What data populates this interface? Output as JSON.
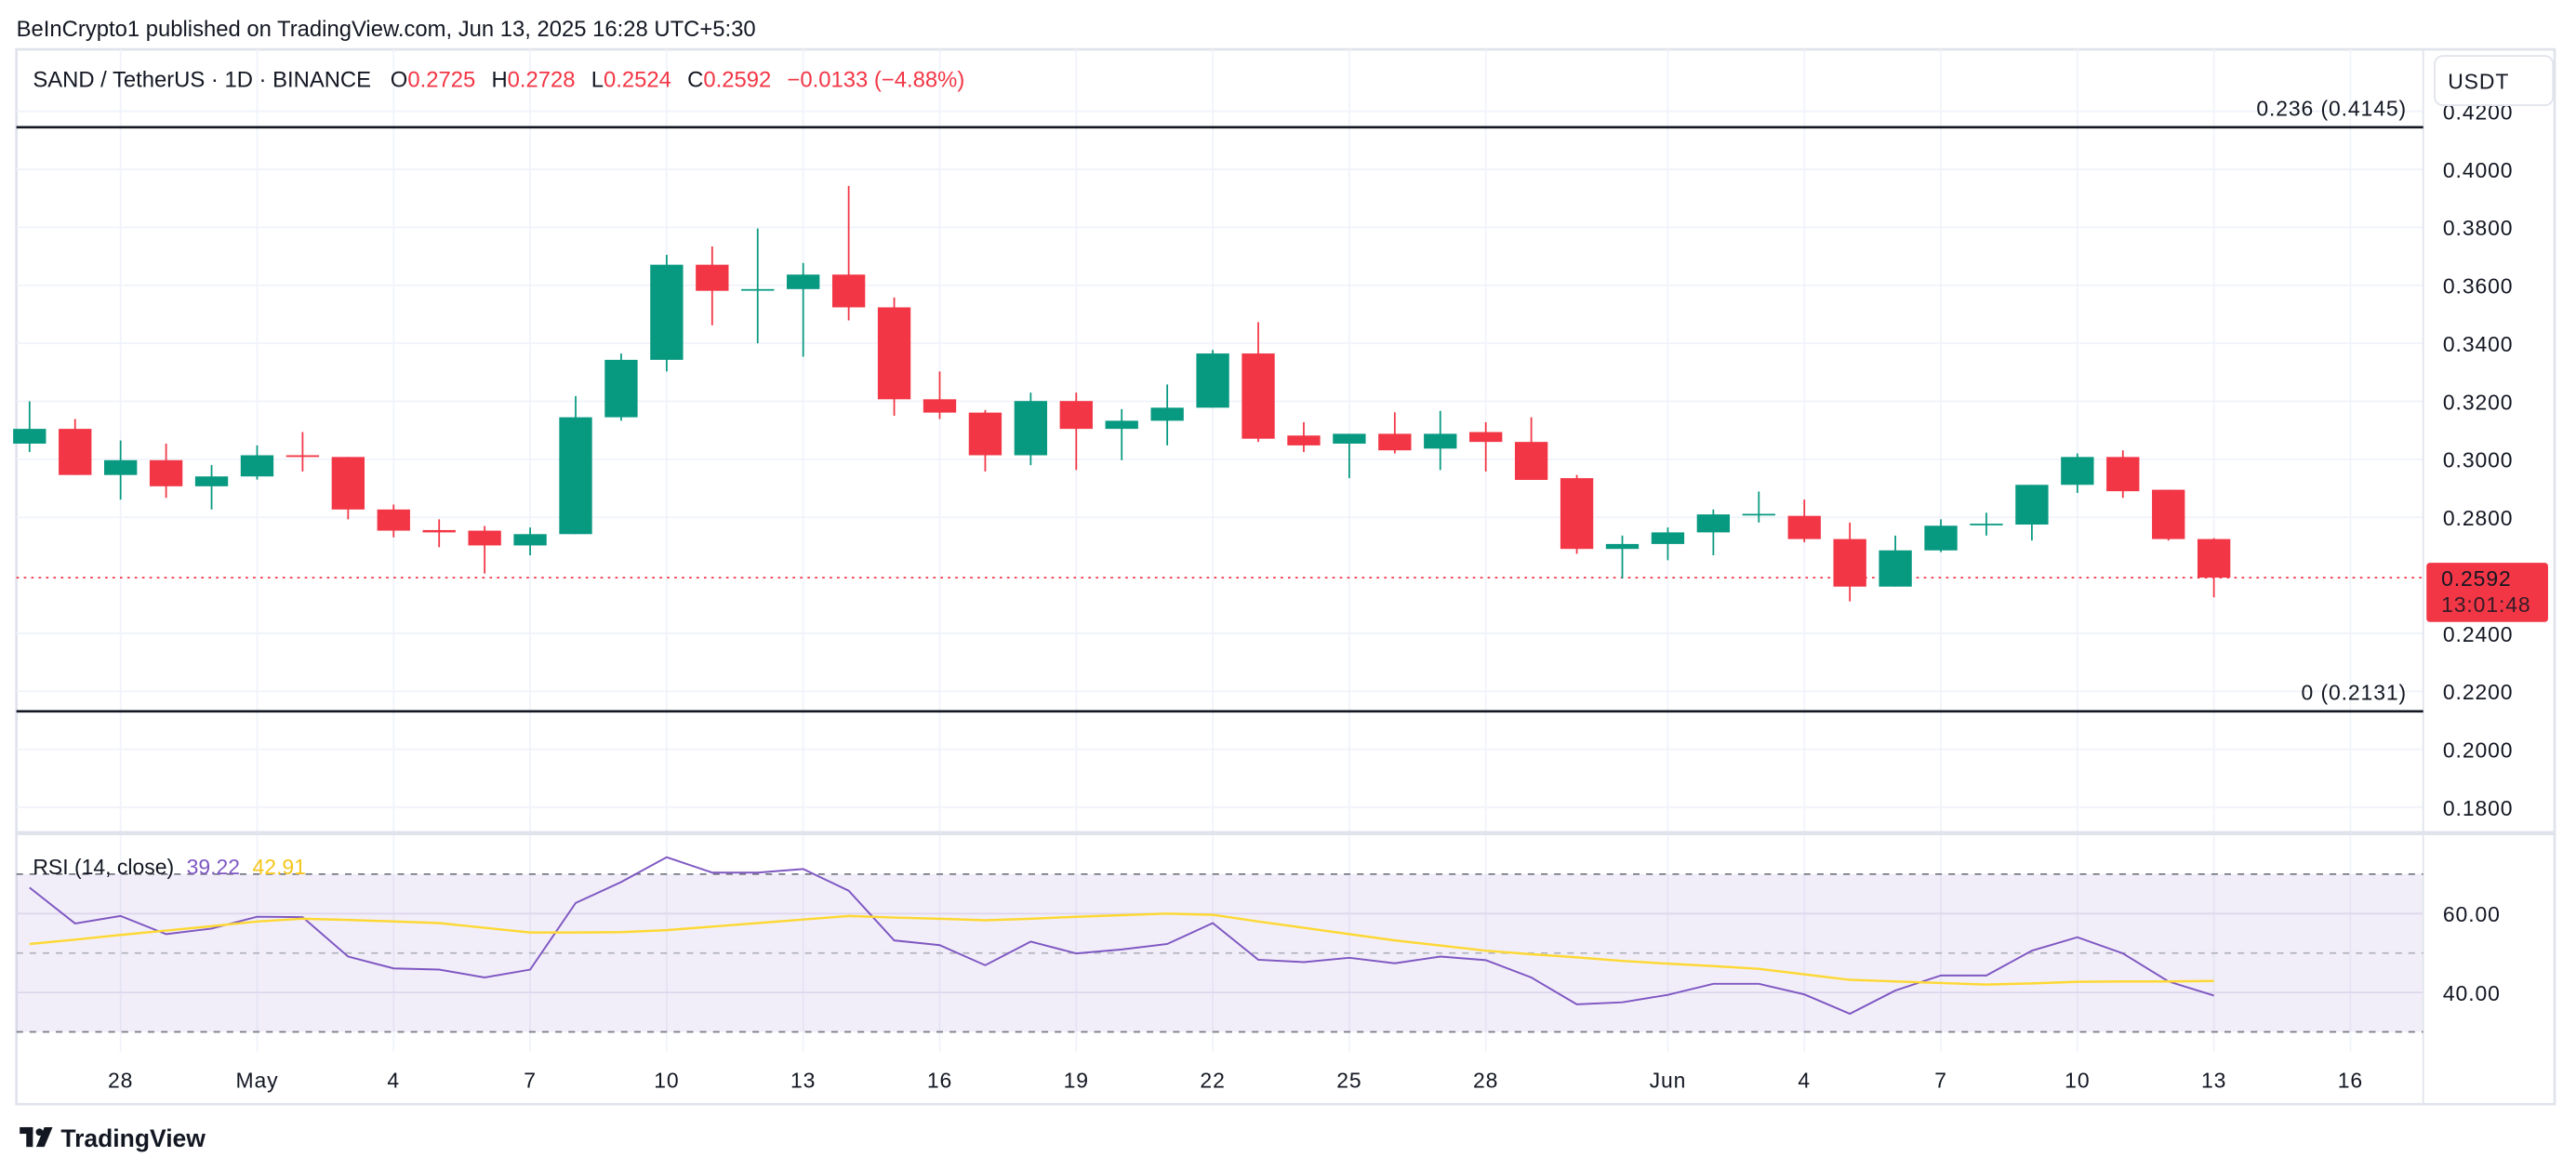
{
  "publisher_line": "BeInCrypto1 published on TradingView.com, Jun 13, 2025 16:28 UTC+5:30",
  "legend": {
    "symbol": "SAND / TetherUS · 1D · BINANCE",
    "o_label": "O",
    "o": "0.2725",
    "h_label": "H",
    "h": "0.2728",
    "l_label": "L",
    "l": "0.2524",
    "c_label": "C",
    "c": "0.2592",
    "change": "−0.0133 (−4.88%)"
  },
  "currency_button": "USDT",
  "fib_levels": [
    {
      "label": "0.236 (0.4145)",
      "price": 0.4145
    },
    {
      "label": "0 (0.2131)",
      "price": 0.2131
    }
  ],
  "last_price": {
    "value": "0.2592",
    "countdown": "13:01:48",
    "price": 0.2592
  },
  "rsi_legend": {
    "label": "RSI (14, close)",
    "rsi": "39.22",
    "ma": "42.91"
  },
  "logo_text": "TradingView",
  "colors": {
    "up": "#089981",
    "down": "#f23645",
    "rsi": "#7e57c2",
    "rsi_ma": "#fdd835",
    "fib": "#131722"
  },
  "chart_data": [
    {
      "type": "candlestick",
      "title": "SAND / TetherUS · 1D · BINANCE",
      "ylim": [
        0.17,
        0.42
      ],
      "y_ticks": [
        "0.4200",
        "0.4000",
        "0.3800",
        "0.3600",
        "0.3400",
        "0.3200",
        "0.3000",
        "0.2800",
        "0.2400",
        "0.2200",
        "0.2000",
        "0.1800"
      ],
      "grid": true,
      "x_ticks": [
        {
          "label": "28",
          "date": "2025-04-28"
        },
        {
          "label": "May",
          "date": "2025-05-01"
        },
        {
          "label": "4",
          "date": "2025-05-04"
        },
        {
          "label": "7",
          "date": "2025-05-07"
        },
        {
          "label": "10",
          "date": "2025-05-10"
        },
        {
          "label": "13",
          "date": "2025-05-13"
        },
        {
          "label": "16",
          "date": "2025-05-16"
        },
        {
          "label": "19",
          "date": "2025-05-19"
        },
        {
          "label": "22",
          "date": "2025-05-22"
        },
        {
          "label": "25",
          "date": "2025-05-25"
        },
        {
          "label": "28",
          "date": "2025-05-28"
        },
        {
          "label": "Jun",
          "date": "2025-06-01"
        },
        {
          "label": "4",
          "date": "2025-06-04"
        },
        {
          "label": "7",
          "date": "2025-06-07"
        },
        {
          "label": "10",
          "date": "2025-06-10"
        },
        {
          "label": "13",
          "date": "2025-06-13"
        },
        {
          "label": "16",
          "date": "2025-06-16"
        }
      ],
      "candles": [
        [
          "2025-04-26",
          0.3054,
          0.32,
          0.3025,
          0.3105
        ],
        [
          "2025-04-27",
          0.3105,
          0.3139,
          0.2946,
          0.2946
        ],
        [
          "2025-04-28",
          0.2946,
          0.3065,
          0.2861,
          0.2997
        ],
        [
          "2025-04-29",
          0.2997,
          0.3054,
          0.2867,
          0.2907
        ],
        [
          "2025-04-30",
          0.2907,
          0.298,
          0.2827,
          0.2941
        ],
        [
          "2025-05-01",
          0.2941,
          0.3048,
          0.293,
          0.3014
        ],
        [
          "2025-05-02",
          0.3014,
          0.3094,
          0.2958,
          0.3008
        ],
        [
          "2025-05-03",
          0.3008,
          0.3008,
          0.2793,
          0.2827
        ],
        [
          "2025-05-04",
          0.2827,
          0.2844,
          0.2731,
          0.2754
        ],
        [
          "2025-05-05",
          0.2756,
          0.2793,
          0.2697,
          0.2748
        ],
        [
          "2025-05-06",
          0.2754,
          0.277,
          0.2606,
          0.2703
        ],
        [
          "2025-05-07",
          0.2703,
          0.2765,
          0.2669,
          0.2742
        ],
        [
          "2025-05-08",
          0.2742,
          0.3218,
          0.2742,
          0.3145
        ],
        [
          "2025-05-09",
          0.3145,
          0.3365,
          0.3133,
          0.3343
        ],
        [
          "2025-05-10",
          0.3343,
          0.3705,
          0.3303,
          0.3671
        ],
        [
          "2025-05-11",
          0.3671,
          0.3734,
          0.3462,
          0.3581
        ],
        [
          "2025-05-12",
          0.3585,
          0.3796,
          0.34,
          0.3587
        ],
        [
          "2025-05-13",
          0.3587,
          0.3677,
          0.3354,
          0.3637
        ],
        [
          "2025-05-14",
          0.3637,
          0.3943,
          0.3479,
          0.3524
        ],
        [
          "2025-05-15",
          0.3524,
          0.3558,
          0.315,
          0.3207
        ],
        [
          "2025-05-16",
          0.3207,
          0.3303,
          0.3139,
          0.3161
        ],
        [
          "2025-05-17",
          0.3161,
          0.317,
          0.2958,
          0.3014
        ],
        [
          "2025-05-18",
          0.3014,
          0.323,
          0.298,
          0.3201
        ],
        [
          "2025-05-19",
          0.3201,
          0.323,
          0.2963,
          0.3105
        ],
        [
          "2025-05-20",
          0.3105,
          0.3173,
          0.2997,
          0.3133
        ],
        [
          "2025-05-21",
          0.3133,
          0.3258,
          0.3048,
          0.3178
        ],
        [
          "2025-05-22",
          0.3178,
          0.3377,
          0.3178,
          0.3365
        ],
        [
          "2025-05-23",
          0.3365,
          0.3473,
          0.306,
          0.3071
        ],
        [
          "2025-05-24",
          0.3082,
          0.3128,
          0.3025,
          0.3048
        ],
        [
          "2025-05-25",
          0.3054,
          0.3088,
          0.2935,
          0.3088
        ],
        [
          "2025-05-26",
          0.3088,
          0.3162,
          0.302,
          0.3031
        ],
        [
          "2025-05-27",
          0.3037,
          0.3167,
          0.2963,
          0.3088
        ],
        [
          "2025-05-28",
          0.3094,
          0.3128,
          0.2958,
          0.306
        ],
        [
          "2025-05-29",
          0.306,
          0.3145,
          0.2929,
          0.2929
        ],
        [
          "2025-05-30",
          0.2935,
          0.2946,
          0.2674,
          0.2691
        ],
        [
          "2025-05-31",
          0.2691,
          0.2737,
          0.2589,
          0.2708
        ],
        [
          "2025-06-01",
          0.2708,
          0.2765,
          0.2652,
          0.2748
        ],
        [
          "2025-06-02",
          0.2748,
          0.2827,
          0.2669,
          0.281
        ],
        [
          "2025-06-03",
          0.281,
          0.2889,
          0.2782,
          0.2812
        ],
        [
          "2025-06-04",
          0.2805,
          0.2861,
          0.2714,
          0.2725
        ],
        [
          "2025-06-05",
          0.2725,
          0.2782,
          0.251,
          0.2561
        ],
        [
          "2025-06-06",
          0.2561,
          0.2737,
          0.2561,
          0.2686
        ],
        [
          "2025-06-07",
          0.2686,
          0.2793,
          0.268,
          0.2771
        ],
        [
          "2025-06-08",
          0.2775,
          0.2816,
          0.2737,
          0.2778
        ],
        [
          "2025-06-09",
          0.2775,
          0.2912,
          0.272,
          0.2912
        ],
        [
          "2025-06-10",
          0.2912,
          0.302,
          0.2884,
          0.3008
        ],
        [
          "2025-06-11",
          0.3008,
          0.3031,
          0.2867,
          0.289
        ],
        [
          "2025-06-12",
          0.2895,
          0.2895,
          0.272,
          0.2725
        ],
        [
          "2025-06-13",
          0.2725,
          0.2728,
          0.2524,
          0.2592
        ]
      ]
    },
    {
      "type": "line",
      "title": "RSI (14, close)",
      "ylim": [
        25,
        78
      ],
      "y_ticks": [
        "60.00",
        "40.00"
      ],
      "bands": [
        70,
        50,
        30
      ],
      "series": [
        {
          "name": "RSI",
          "color": "#7e57c2",
          "values": [
            66.6,
            57.5,
            59.4,
            54.8,
            56.2,
            59.2,
            59.1,
            49.1,
            46.1,
            45.8,
            43.8,
            45.8,
            62.7,
            68.0,
            74.3,
            70.4,
            70.4,
            71.3,
            65.8,
            53.2,
            52.0,
            46.9,
            52.9,
            49.9,
            50.9,
            52.3,
            57.6,
            48.3,
            47.7,
            48.8,
            47.4,
            49.1,
            48.2,
            43.8,
            37.0,
            37.5,
            39.4,
            42.2,
            42.2,
            39.5,
            34.6,
            40.5,
            44.3,
            44.3,
            50.6,
            54.0,
            49.9,
            42.8,
            39.22
          ]
        },
        {
          "name": "RSI-based MA",
          "color": "#fdd835",
          "values": [
            52.3,
            53.4,
            54.6,
            55.7,
            56.8,
            58.0,
            58.7,
            58.4,
            58.0,
            57.6,
            56.4,
            55.2,
            55.2,
            55.3,
            55.8,
            56.7,
            57.6,
            58.5,
            59.4,
            59.0,
            58.7,
            58.3,
            58.7,
            59.2,
            59.6,
            60.0,
            59.7,
            58.0,
            56.4,
            54.8,
            53.2,
            51.9,
            50.6,
            49.7,
            48.9,
            48.0,
            47.3,
            46.7,
            46.0,
            44.6,
            43.2,
            42.8,
            42.4,
            42.0,
            42.3,
            42.7,
            42.8,
            42.8,
            42.91
          ]
        }
      ]
    }
  ]
}
